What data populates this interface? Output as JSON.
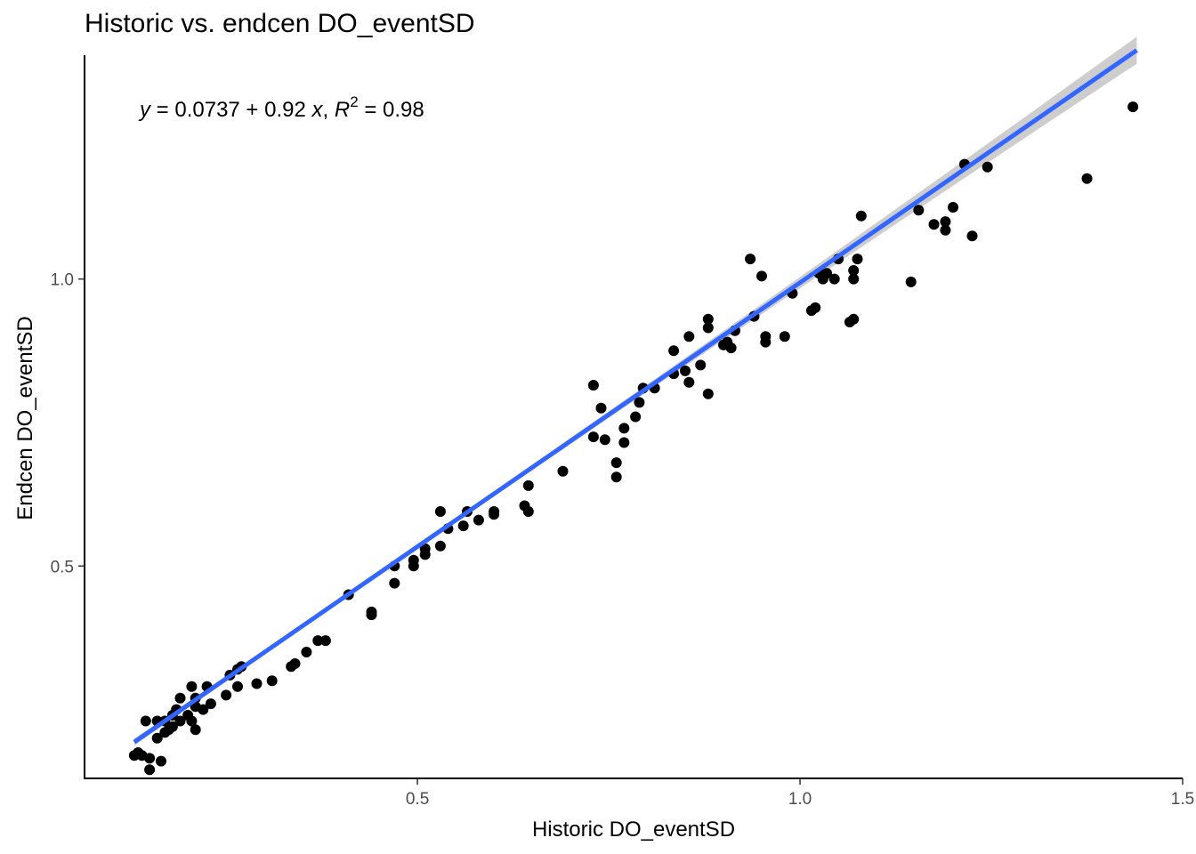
{
  "chart_data": {
    "type": "scatter",
    "title": "Historic vs. endcen DO_eventSD",
    "xlabel": "Historic DO_eventSD",
    "ylabel": "Endcen DO_eventSD",
    "xlim": [
      0.065,
      1.5
    ],
    "ylim": [
      0.13,
      1.39
    ],
    "x_ticks": [
      0.5,
      1.0,
      1.5
    ],
    "x_tick_labels": [
      "0.5",
      "1.0",
      "1.5"
    ],
    "y_ticks": [
      0.5,
      1.0
    ],
    "y_tick_labels": [
      "0.5",
      "1.0"
    ],
    "grid": false,
    "colors": {
      "points": "#000000",
      "fit_line": "#3366FF",
      "ribbon": "#c8c8c8"
    },
    "annotation": {
      "y_var": "y",
      "equals1": " = 0.0737 + 0.92 ",
      "x_var": "x",
      "comma": ", ",
      "r_var": "R",
      "r_sup": "2",
      "equals2": " = 0.98"
    },
    "fit": {
      "intercept": 0.0737,
      "slope": 0.92,
      "x_range": [
        0.13,
        1.44
      ]
    },
    "points": [
      [
        0.13,
        0.17
      ],
      [
        0.135,
        0.175
      ],
      [
        0.14,
        0.17
      ],
      [
        0.145,
        0.23
      ],
      [
        0.15,
        0.165
      ],
      [
        0.15,
        0.145
      ],
      [
        0.16,
        0.2
      ],
      [
        0.16,
        0.23
      ],
      [
        0.165,
        0.16
      ],
      [
        0.17,
        0.21
      ],
      [
        0.17,
        0.23
      ],
      [
        0.175,
        0.215
      ],
      [
        0.18,
        0.22
      ],
      [
        0.18,
        0.24
      ],
      [
        0.185,
        0.25
      ],
      [
        0.19,
        0.27
      ],
      [
        0.19,
        0.23
      ],
      [
        0.2,
        0.24
      ],
      [
        0.205,
        0.23
      ],
      [
        0.205,
        0.29
      ],
      [
        0.21,
        0.27
      ],
      [
        0.21,
        0.255
      ],
      [
        0.21,
        0.215
      ],
      [
        0.22,
        0.25
      ],
      [
        0.225,
        0.29
      ],
      [
        0.23,
        0.26
      ],
      [
        0.25,
        0.275
      ],
      [
        0.255,
        0.31
      ],
      [
        0.265,
        0.32
      ],
      [
        0.265,
        0.29
      ],
      [
        0.27,
        0.325
      ],
      [
        0.29,
        0.295
      ],
      [
        0.31,
        0.3
      ],
      [
        0.335,
        0.325
      ],
      [
        0.34,
        0.33
      ],
      [
        0.355,
        0.35
      ],
      [
        0.37,
        0.37
      ],
      [
        0.38,
        0.37
      ],
      [
        0.41,
        0.45
      ],
      [
        0.44,
        0.415
      ],
      [
        0.44,
        0.42
      ],
      [
        0.47,
        0.47
      ],
      [
        0.47,
        0.5
      ],
      [
        0.495,
        0.5
      ],
      [
        0.495,
        0.51
      ],
      [
        0.51,
        0.52
      ],
      [
        0.51,
        0.53
      ],
      [
        0.53,
        0.535
      ],
      [
        0.53,
        0.595
      ],
      [
        0.54,
        0.565
      ],
      [
        0.56,
        0.57
      ],
      [
        0.565,
        0.595
      ],
      [
        0.58,
        0.58
      ],
      [
        0.6,
        0.59
      ],
      [
        0.6,
        0.595
      ],
      [
        0.64,
        0.605
      ],
      [
        0.645,
        0.595
      ],
      [
        0.645,
        0.64
      ],
      [
        0.69,
        0.665
      ],
      [
        0.73,
        0.815
      ],
      [
        0.73,
        0.725
      ],
      [
        0.74,
        0.775
      ],
      [
        0.745,
        0.72
      ],
      [
        0.76,
        0.68
      ],
      [
        0.76,
        0.655
      ],
      [
        0.77,
        0.715
      ],
      [
        0.77,
        0.74
      ],
      [
        0.785,
        0.76
      ],
      [
        0.79,
        0.785
      ],
      [
        0.795,
        0.81
      ],
      [
        0.81,
        0.81
      ],
      [
        0.835,
        0.835
      ],
      [
        0.835,
        0.875
      ],
      [
        0.85,
        0.84
      ],
      [
        0.855,
        0.82
      ],
      [
        0.855,
        0.9
      ],
      [
        0.87,
        0.85
      ],
      [
        0.88,
        0.8
      ],
      [
        0.88,
        0.915
      ],
      [
        0.88,
        0.93
      ],
      [
        0.9,
        0.885
      ],
      [
        0.905,
        0.89
      ],
      [
        0.91,
        0.88
      ],
      [
        0.915,
        0.91
      ],
      [
        0.935,
        1.035
      ],
      [
        0.94,
        0.935
      ],
      [
        0.95,
        1.005
      ],
      [
        0.955,
        0.9
      ],
      [
        0.955,
        0.89
      ],
      [
        0.98,
        0.9
      ],
      [
        0.99,
        0.975
      ],
      [
        1.015,
        0.945
      ],
      [
        1.02,
        0.95
      ],
      [
        1.025,
        1.01
      ],
      [
        1.03,
        1.0
      ],
      [
        1.035,
        1.01
      ],
      [
        1.045,
        1.0
      ],
      [
        1.05,
        1.035
      ],
      [
        1.065,
        0.925
      ],
      [
        1.07,
        0.93
      ],
      [
        1.07,
        1.015
      ],
      [
        1.07,
        1.0
      ],
      [
        1.075,
        1.035
      ],
      [
        1.08,
        1.11
      ],
      [
        1.145,
        0.995
      ],
      [
        1.155,
        1.12
      ],
      [
        1.175,
        1.095
      ],
      [
        1.19,
        1.1
      ],
      [
        1.19,
        1.085
      ],
      [
        1.2,
        1.125
      ],
      [
        1.215,
        1.2
      ],
      [
        1.225,
        1.075
      ],
      [
        1.245,
        1.195
      ],
      [
        1.375,
        1.175
      ],
      [
        1.435,
        1.3
      ]
    ]
  }
}
